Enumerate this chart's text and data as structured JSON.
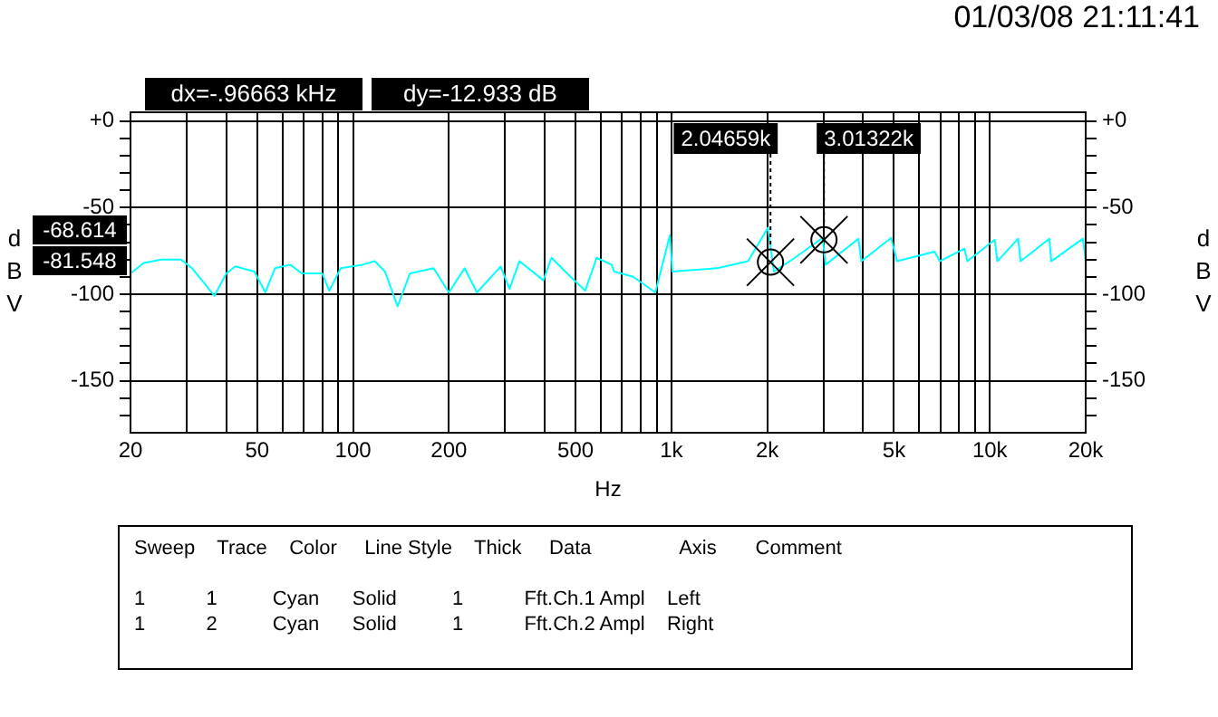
{
  "chart_data": {
    "type": "line",
    "xlabel": "Hz",
    "ylabel": "dBV",
    "y2label": "dBV",
    "x": [
      20,
      22,
      25,
      28.8,
      31.2,
      36.7,
      40,
      42.7,
      49,
      53,
      56.9,
      63.5,
      69,
      80,
      84.2,
      91.5,
      107,
      117,
      126,
      138,
      151,
      179,
      200,
      224,
      245,
      291,
      310,
      333,
      396,
      420,
      470,
      536,
      582,
      649,
      661,
      758,
      890,
      989,
      1007,
      1394,
      1740,
      2008,
      2100,
      2440,
      2984,
      3050,
      3864,
      3950,
      4897,
      5110,
      6700,
      6960,
      8320,
      8500,
      10360,
      10560,
      12270,
      12500,
      15370,
      15600,
      19600,
      20000
    ],
    "series": [
      {
        "color": "#00ffff",
        "values": [
          -88,
          -82,
          -80,
          -80,
          -85,
          -101,
          -88,
          -84,
          -87,
          -99,
          -85,
          -83,
          -88,
          -88,
          -98,
          -85,
          -83,
          -81,
          -87,
          -107,
          -88,
          -85,
          -99,
          -85,
          -99,
          -84,
          -97,
          -81,
          -92,
          -79,
          -88,
          -98,
          -79,
          -83,
          -87,
          -90,
          -99,
          -66,
          -87,
          -85,
          -81,
          -61.7,
          -87,
          -79,
          -67.5,
          -83,
          -68,
          -81,
          -67.5,
          -81,
          -75.5,
          -81,
          -73.7,
          -81,
          -68.6,
          -81,
          -68,
          -81,
          -68,
          -81,
          -68,
          -81
        ]
      }
    ],
    "xlim": [
      20,
      20000
    ],
    "xticks": [
      {
        "value": 20,
        "label": "20"
      },
      {
        "value": 30,
        "label": null
      },
      {
        "value": 40,
        "label": null
      },
      {
        "value": 50,
        "label": "50"
      },
      {
        "value": 60,
        "label": null
      },
      {
        "value": 70,
        "label": null
      },
      {
        "value": 80,
        "label": null
      },
      {
        "value": 90,
        "label": null
      },
      {
        "value": 100,
        "label": "100"
      },
      {
        "value": 200,
        "label": "200"
      },
      {
        "value": 300,
        "label": null
      },
      {
        "value": 400,
        "label": null
      },
      {
        "value": 500,
        "label": "500"
      },
      {
        "value": 600,
        "label": null
      },
      {
        "value": 700,
        "label": null
      },
      {
        "value": 800,
        "label": null
      },
      {
        "value": 900,
        "label": null
      },
      {
        "value": 1000,
        "label": "1k"
      },
      {
        "value": 2000,
        "label": "2k"
      },
      {
        "value": 3000,
        "label": null
      },
      {
        "value": 4000,
        "label": null
      },
      {
        "value": 5000,
        "label": "5k"
      },
      {
        "value": 6000,
        "label": null
      },
      {
        "value": 7000,
        "label": null
      },
      {
        "value": 8000,
        "label": null
      },
      {
        "value": 9000,
        "label": null
      },
      {
        "value": 10000,
        "label": "10k"
      },
      {
        "value": 20000,
        "label": "20k"
      }
    ],
    "ylim": [
      -180,
      5
    ],
    "yticks": [
      {
        "value": -170,
        "label": null
      },
      {
        "value": -160,
        "label": null
      },
      {
        "value": -150,
        "label": "-150"
      },
      {
        "value": -140,
        "label": null
      },
      {
        "value": -130,
        "label": null
      },
      {
        "value": -120,
        "label": null
      },
      {
        "value": -110,
        "label": null
      },
      {
        "value": -100,
        "label": "-100"
      },
      {
        "value": -90,
        "label": null
      },
      {
        "value": -80,
        "label": null
      },
      {
        "value": -70,
        "label": null
      },
      {
        "value": -60,
        "label": null
      },
      {
        "value": -50,
        "label": "-50"
      },
      {
        "value": -40,
        "label": null
      },
      {
        "value": -30,
        "label": null
      },
      {
        "value": -20,
        "label": null
      },
      {
        "value": -10,
        "label": null
      },
      {
        "value": 0,
        "label": "+0"
      }
    ],
    "y2lim": [
      -180,
      5
    ],
    "y2ticks": [
      {
        "value": -170,
        "label": null
      },
      {
        "value": -160,
        "label": null
      },
      {
        "value": -150,
        "label": "-150"
      },
      {
        "value": -140,
        "label": null
      },
      {
        "value": -130,
        "label": null
      },
      {
        "value": -120,
        "label": null
      },
      {
        "value": -110,
        "label": null
      },
      {
        "value": -100,
        "label": "-100"
      },
      {
        "value": -90,
        "label": null
      },
      {
        "value": -80,
        "label": null
      },
      {
        "value": -70,
        "label": null
      },
      {
        "value": -60,
        "label": null
      },
      {
        "value": -50,
        "label": "-50"
      },
      {
        "value": -40,
        "label": null
      },
      {
        "value": -30,
        "label": null
      },
      {
        "value": -20,
        "label": null
      },
      {
        "value": -10,
        "label": null
      },
      {
        "value": 0,
        "label": "+0"
      }
    ],
    "log": "x",
    "grid": true,
    "legend": false,
    "marker": "none",
    "line_style": "solid",
    "annotations": [
      "01/03/08 21:11:41",
      "dx=-.96663 kHz",
      "dy=-12.933 dB",
      "-68.614",
      "-81.548",
      "Sweep    Trace    Color     Line Style    Thick     Data                Axis       Comment",
      "1           1          Cyan      Solid          1           Fft.Ch.1 Ampl    Left",
      "1           2          Cyan      Solid          1           Fft.Ch.2 Ampl    Right",
      {
        "text": "2.04659k",
        "x": 2046.59,
        "y": -81.548
      },
      {
        "text": "3.01322k",
        "x": 3013.22,
        "y": -68.614
      }
    ]
  }
}
